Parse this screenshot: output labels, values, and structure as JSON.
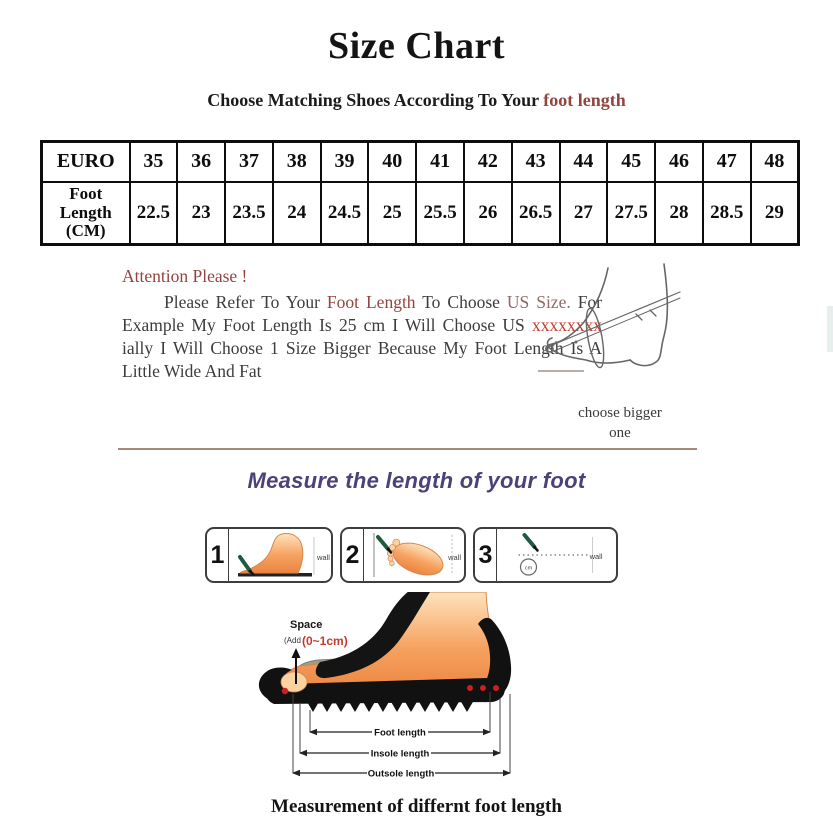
{
  "colors": {
    "maroon": "#93443f",
    "maroon_soft": "#8f6a68",
    "red": "#c43a2e",
    "purple": "#4d4178",
    "divider": "#a5897a",
    "skin": "#f5a263",
    "skin_light": "#fdd3a4",
    "skin_outline": "#d9854e",
    "pen_green": "#1f5a3e",
    "insole_gray": "#9c9c90",
    "sketch_gray": "#666666"
  },
  "header": {
    "title": "Size Chart",
    "subtitle_prefix": "Choose Matching Shoes According To Your ",
    "subtitle_highlight": "foot length"
  },
  "size_table": {
    "row1_label": "EURO",
    "row2_label": "Foot Length (CM)",
    "euro_sizes": [
      "35",
      "36",
      "37",
      "38",
      "39",
      "40",
      "41",
      "42",
      "43",
      "44",
      "45",
      "46",
      "47",
      "48"
    ],
    "foot_lengths_cm": [
      "22.5",
      "23",
      "23.5",
      "24",
      "24.5",
      "25",
      "25.5",
      "26",
      "26.5",
      "27",
      "27.5",
      "28",
      "28.5",
      "29"
    ]
  },
  "attention": {
    "heading": "Attention Please !",
    "segments": [
      {
        "text": "Please Refer To Your ",
        "tone": "body"
      },
      {
        "text": "Foot Length",
        "tone": "maroon"
      },
      {
        "text": " To Choose ",
        "tone": "body"
      },
      {
        "text": "US Size.",
        "tone": "maroon_soft"
      },
      {
        "text": " For Example My Foot Length Is 25 cm I Will Choose US ",
        "tone": "body"
      },
      {
        "text": "xxxxxxxx",
        "tone": "red"
      },
      {
        "text": " ially I Will Choose 1 Size Bigger Because My Foot Length Is A Little Wide And Fat",
        "tone": "body"
      }
    ],
    "figure_caption": "choose bigger one"
  },
  "measure_section": {
    "heading": "Measure the length of your foot",
    "steps": [
      {
        "num": "1",
        "wall_label": "wall"
      },
      {
        "num": "2",
        "wall_label": "wall"
      },
      {
        "num": "3",
        "wall_label": "wall",
        "cm_label": "cm"
      }
    ]
  },
  "diagram": {
    "space_label": "Space",
    "space_add_label": "(Add",
    "space_range_label": "(0~1cm)",
    "foot_length_label": "Foot length",
    "insole_length_label": "Insole length",
    "outsole_length_label": "Outsole length"
  },
  "footer": {
    "caption": "Measurement of differnt foot length"
  },
  "chart_data": {
    "type": "table",
    "title": "Size Chart",
    "columns": [
      "EURO",
      "Foot Length (CM)"
    ],
    "rows": [
      [
        "35",
        "22.5"
      ],
      [
        "36",
        "23"
      ],
      [
        "37",
        "23.5"
      ],
      [
        "38",
        "24"
      ],
      [
        "39",
        "24.5"
      ],
      [
        "40",
        "25"
      ],
      [
        "41",
        "25.5"
      ],
      [
        "42",
        "26"
      ],
      [
        "43",
        "26.5"
      ],
      [
        "44",
        "27"
      ],
      [
        "45",
        "27.5"
      ],
      [
        "46",
        "28"
      ],
      [
        "47",
        "28.5"
      ],
      [
        "48",
        "29"
      ]
    ]
  }
}
